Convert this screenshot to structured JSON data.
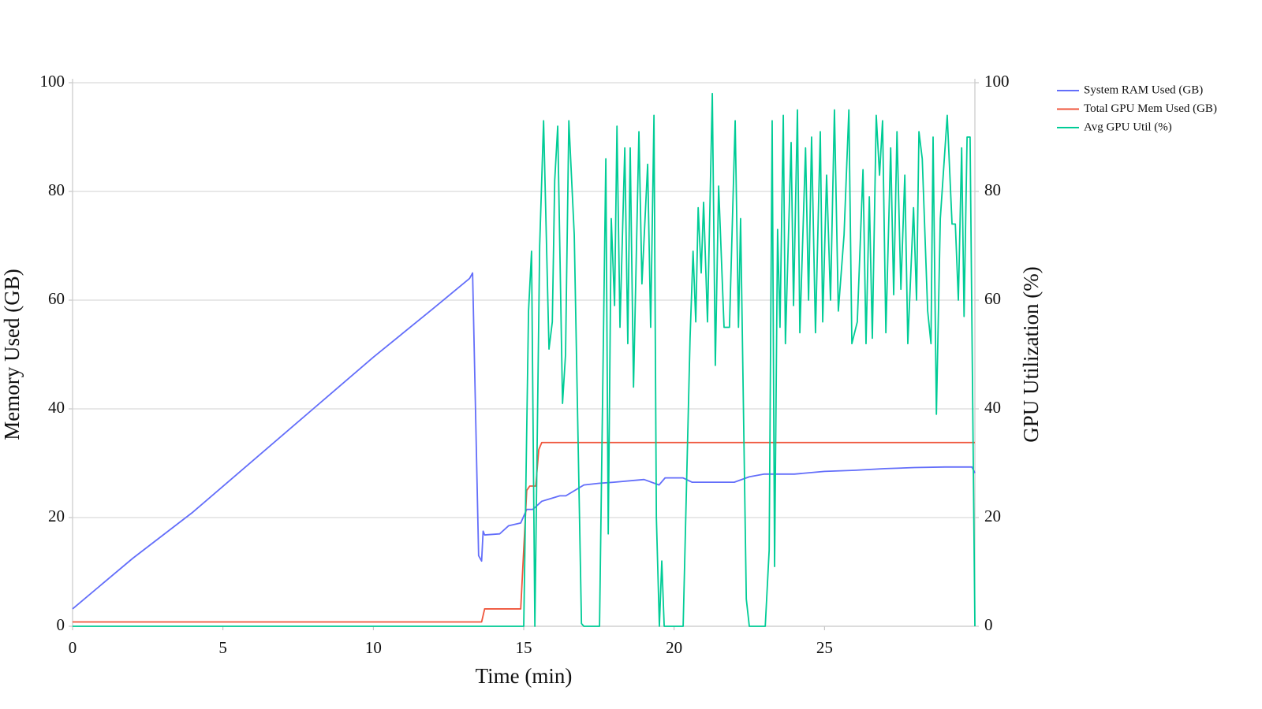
{
  "chart_data": {
    "type": "line",
    "xlabel": "Time (min)",
    "ylabel": "Memory Used (GB)",
    "y2label": "GPU Utilization (%)",
    "xlim": [
      0,
      30
    ],
    "xticks": [
      0,
      5,
      10,
      15,
      20,
      25
    ],
    "ylim": [
      0,
      100
    ],
    "yticks": [
      0,
      20,
      40,
      60,
      80,
      100
    ],
    "y2lim": [
      0,
      100
    ],
    "y2ticks": [
      0,
      20,
      40,
      60,
      80,
      100
    ],
    "grid": true,
    "legend": "right",
    "series": [
      {
        "name": "System RAM Used (GB)",
        "color": "#636efa",
        "x": [
          0,
          2,
          4,
          6,
          8,
          10,
          12,
          13.2,
          13.3,
          13.5,
          13.6,
          13.65,
          13.7,
          14.2,
          14.5,
          14.9,
          15.1,
          15.3,
          15.6,
          15.9,
          16.2,
          16.4,
          16.7,
          17,
          17.5,
          18,
          19,
          19.5,
          19.7,
          20.3,
          20.6,
          22,
          22.5,
          23,
          24,
          25,
          26,
          27,
          28,
          29,
          29.9,
          30
        ],
        "values": [
          3.2,
          12.5,
          21,
          30.5,
          40,
          49.5,
          58.5,
          64,
          65,
          13,
          12,
          17.5,
          16.8,
          17,
          18.5,
          19,
          21.5,
          21.5,
          23,
          23.5,
          24,
          24,
          25,
          26,
          26.3,
          26.5,
          27,
          26,
          27.3,
          27.3,
          26.5,
          26.5,
          27.5,
          28,
          28,
          28.5,
          28.7,
          29,
          29.2,
          29.3,
          29.3,
          28.2
        ]
      },
      {
        "name": "Total GPU Mem Used (GB)",
        "color": "#ef553b",
        "x": [
          0,
          13.6,
          13.7,
          14.9,
          15.1,
          15.2,
          15.4,
          15.5,
          15.6,
          30
        ],
        "values": [
          0.8,
          0.8,
          3.2,
          3.2,
          25,
          25.8,
          25.8,
          32.5,
          33.8,
          33.8
        ]
      },
      {
        "name": "Avg GPU Util (%)",
        "color": "#00cc96",
        "axis": "y2",
        "x": [
          0,
          15.0,
          15.16,
          15.26,
          15.37,
          15.53,
          15.66,
          15.84,
          15.95,
          16.03,
          16.13,
          16.29,
          16.39,
          16.5,
          16.68,
          16.92,
          17.0,
          17.52,
          17.73,
          17.81,
          17.91,
          18.02,
          18.1,
          18.2,
          18.36,
          18.46,
          18.54,
          18.65,
          18.83,
          18.93,
          19.12,
          19.22,
          19.33,
          19.41,
          19.51,
          19.59,
          19.67,
          20.3,
          20.53,
          20.63,
          20.72,
          20.8,
          20.9,
          20.98,
          21.11,
          21.27,
          21.37,
          21.48,
          21.66,
          21.84,
          22.03,
          22.14,
          22.21,
          22.4,
          22.5,
          23.03,
          23.16,
          23.26,
          23.34,
          23.44,
          23.52,
          23.63,
          23.7,
          23.89,
          23.97,
          24.1,
          24.18,
          24.37,
          24.47,
          24.57,
          24.7,
          24.86,
          24.94,
          25.07,
          25.2,
          25.33,
          25.46,
          25.65,
          25.81,
          25.91,
          26.09,
          26.28,
          26.38,
          26.49,
          26.59,
          26.72,
          26.83,
          26.93,
          27.04,
          27.2,
          27.3,
          27.41,
          27.54,
          27.67,
          27.77,
          27.96,
          28.06,
          28.14,
          28.25,
          28.43,
          28.54,
          28.61,
          28.72,
          28.85,
          29.08,
          29.24,
          29.35,
          29.45,
          29.56,
          29.64,
          29.74,
          29.84,
          30.0
        ],
        "values": [
          0,
          0,
          58,
          69,
          0,
          70,
          93,
          51,
          56,
          82,
          92,
          41,
          50,
          93,
          72,
          0.5,
          0,
          0,
          86,
          17,
          75,
          59,
          92,
          55,
          88,
          52,
          88,
          44,
          91,
          63,
          85,
          55,
          94,
          20,
          0,
          12,
          0,
          0,
          53,
          69,
          56,
          77,
          65,
          78,
          56,
          98,
          48,
          81,
          55,
          55,
          93,
          55,
          75,
          5,
          0,
          0,
          14,
          93,
          11,
          73,
          55,
          94,
          52,
          89,
          59,
          95,
          54,
          88,
          60,
          90,
          54,
          91,
          56,
          83,
          60,
          95,
          58,
          72,
          95,
          52,
          56,
          84,
          52,
          79,
          53,
          94,
          83,
          93,
          54,
          88,
          61,
          91,
          62,
          83,
          52,
          77,
          60,
          91,
          86,
          58,
          52,
          90,
          39,
          75,
          94,
          74,
          74,
          60,
          88,
          57,
          90,
          90,
          0
        ]
      }
    ]
  }
}
